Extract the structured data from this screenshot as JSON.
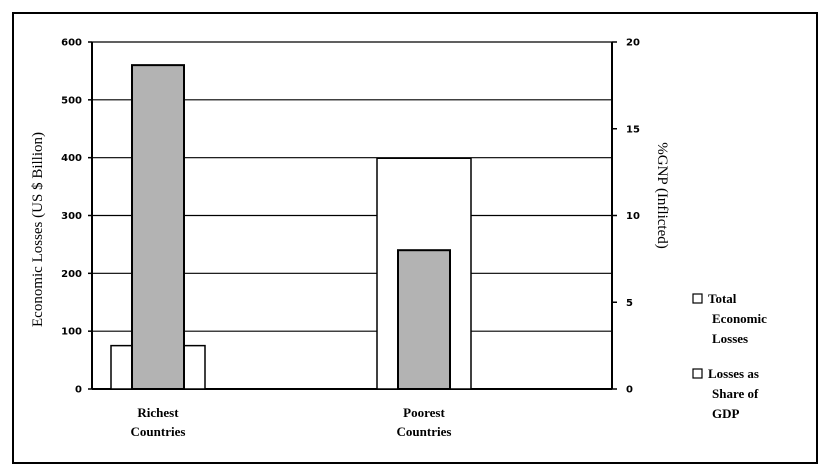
{
  "chart_data": {
    "type": "bar",
    "title": "",
    "categories": [
      "Richest Countries",
      "Poorest Countries"
    ],
    "category_lines": [
      [
        "Richest",
        "Countries"
      ],
      [
        "Poorest",
        "Countries"
      ]
    ],
    "ylabel_left": "Economic Losses (US $ Billion)",
    "ylabel_right": "%GNP (Inflicted)",
    "y_left_lim": [
      0,
      600
    ],
    "y_left_ticks": [
      "0",
      "100",
      "200",
      "300",
      "400",
      "500",
      "600"
    ],
    "y_right_lim": [
      0,
      20
    ],
    "y_right_ticks": [
      "0",
      "5",
      "10",
      "15",
      "20"
    ],
    "grid": true,
    "legend_position": "right",
    "series": [
      {
        "name": "Total Economic Losses",
        "axis": "left",
        "values": [
          560,
          240
        ],
        "color": "#b3b3b3"
      },
      {
        "name": "Losses as Share of GDP",
        "axis": "right",
        "values": [
          2.5,
          13.3
        ],
        "color": "#ffffff"
      }
    ],
    "legend": [
      {
        "lines": [
          "Total",
          "Economic",
          "Losses"
        ]
      },
      {
        "lines": [
          "Losses as",
          "Share of",
          "GDP"
        ]
      }
    ]
  }
}
